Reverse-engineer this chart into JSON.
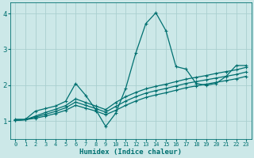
{
  "xlabel": "Humidex (Indice chaleur)",
  "background_color": "#cce8e8",
  "grid_color": "#aacfcf",
  "line_color": "#007070",
  "xlim": [
    -0.5,
    23.5
  ],
  "ylim": [
    0.5,
    4.3
  ],
  "xticks": [
    0,
    1,
    2,
    3,
    4,
    5,
    6,
    7,
    8,
    9,
    10,
    11,
    12,
    13,
    14,
    15,
    16,
    17,
    18,
    19,
    20,
    21,
    22,
    23
  ],
  "yticks": [
    1,
    2,
    3,
    4
  ],
  "curve1_x": [
    0,
    1,
    2,
    3,
    4,
    5,
    6,
    7,
    8,
    9,
    10,
    11,
    12,
    13,
    14,
    15,
    16,
    17,
    18,
    19,
    20,
    21,
    22,
    23
  ],
  "curve1_y": [
    1.05,
    1.05,
    1.28,
    1.35,
    1.42,
    1.55,
    2.05,
    1.72,
    1.32,
    0.85,
    1.22,
    1.92,
    2.9,
    3.72,
    4.02,
    3.52,
    2.52,
    2.45,
    2.05,
    2.0,
    2.05,
    2.25,
    2.55,
    2.55
  ],
  "curve2_x": [
    0,
    1,
    2,
    3,
    4,
    5,
    6,
    7,
    8,
    9,
    10,
    11,
    12,
    13,
    14,
    15,
    16,
    17,
    18,
    19,
    20,
    21,
    22,
    23
  ],
  "curve2_y": [
    1.02,
    1.04,
    1.14,
    1.24,
    1.33,
    1.43,
    1.62,
    1.52,
    1.42,
    1.32,
    1.52,
    1.68,
    1.8,
    1.9,
    1.97,
    2.03,
    2.1,
    2.17,
    2.22,
    2.27,
    2.33,
    2.38,
    2.43,
    2.5
  ],
  "curve3_x": [
    0,
    1,
    2,
    3,
    4,
    5,
    6,
    7,
    8,
    9,
    10,
    11,
    12,
    13,
    14,
    15,
    16,
    17,
    18,
    19,
    20,
    21,
    22,
    23
  ],
  "curve3_y": [
    1.02,
    1.04,
    1.11,
    1.19,
    1.27,
    1.37,
    1.53,
    1.44,
    1.35,
    1.25,
    1.41,
    1.56,
    1.68,
    1.78,
    1.85,
    1.91,
    1.98,
    2.05,
    2.1,
    2.15,
    2.2,
    2.25,
    2.3,
    2.37
  ],
  "curve4_x": [
    0,
    1,
    2,
    3,
    4,
    5,
    6,
    7,
    8,
    9,
    10,
    11,
    12,
    13,
    14,
    15,
    16,
    17,
    18,
    19,
    20,
    21,
    22,
    23
  ],
  "curve4_y": [
    1.02,
    1.04,
    1.08,
    1.14,
    1.21,
    1.3,
    1.44,
    1.36,
    1.28,
    1.18,
    1.3,
    1.44,
    1.56,
    1.66,
    1.73,
    1.79,
    1.86,
    1.93,
    1.98,
    2.03,
    2.08,
    2.13,
    2.18,
    2.25
  ]
}
